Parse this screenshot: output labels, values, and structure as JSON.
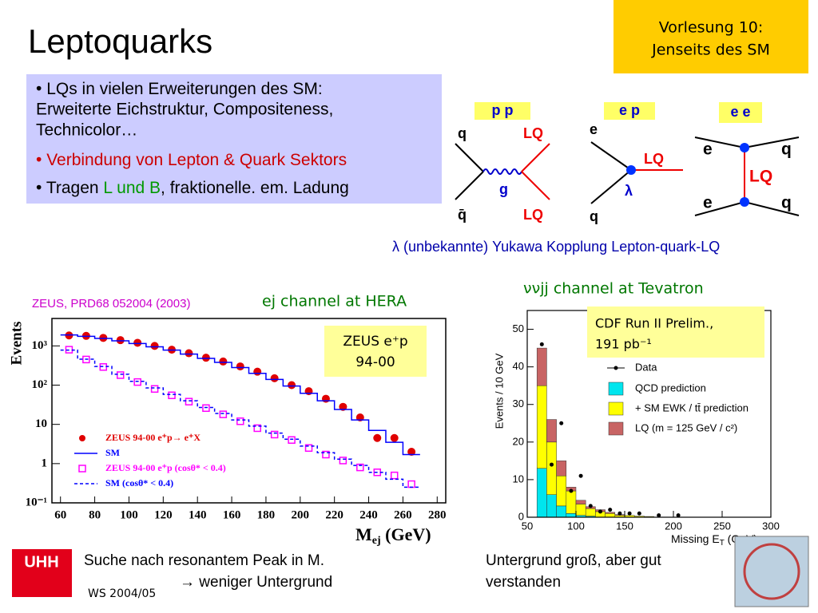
{
  "header": {
    "title": "Leptoquarks",
    "course": [
      "Vorlesung 10:",
      "Jenseits des SM"
    ]
  },
  "bullets": [
    {
      "parts": [
        "LQs in vielen Erweiterungen des SM:",
        "Erweiterte Eichstruktur, Compositeness,",
        "Technicolor…"
      ]
    },
    {
      "parts": [
        "Verbindung von Lepton & Quark Sektors"
      ]
    },
    {
      "parts": [
        "Tragen ",
        "L und B",
        ",  fraktionelle. em. Ladung"
      ]
    }
  ],
  "diagrams": [
    {
      "label": "p p",
      "particles": [
        "q",
        "q̄",
        "g",
        "LQ",
        "LQ"
      ]
    },
    {
      "label": "e p",
      "particles": [
        "e",
        "q",
        "λ",
        "LQ"
      ]
    },
    {
      "label": "e e",
      "particles": [
        "e",
        "e",
        "q",
        "q",
        "LQ"
      ]
    }
  ],
  "coupling_note": "λ (unbekannte) Yukawa Kopplung Lepton-quark-LQ",
  "hera": {
    "reference": "ZEUS, PRD68 052004 (2003)",
    "title": "ej channel at HERA",
    "box": [
      "ZEUS e⁺p",
      "94-00"
    ],
    "y_label": "Events",
    "x_label": "M",
    "x_label_sub": "ej",
    "x_label_unit": " (GeV)",
    "xlim": [
      55,
      285
    ],
    "xticks": [
      60,
      80,
      100,
      120,
      140,
      160,
      180,
      200,
      220,
      240,
      260,
      280
    ],
    "ylim": [
      0.1,
      5000
    ],
    "log": true,
    "yticks": [
      {
        "value": 0.1,
        "label": "10⁻¹"
      },
      1,
      10,
      {
        "value": 100,
        "label": "10²"
      },
      {
        "value": 1000,
        "label": "10³"
      }
    ],
    "x": [
      65,
      75,
      85,
      95,
      105,
      115,
      125,
      135,
      145,
      155,
      165,
      175,
      185,
      195,
      205,
      215,
      225,
      235,
      245,
      255,
      265
    ],
    "series": [
      {
        "name": "ZEUS 94-00 e⁺p→ e⁺X",
        "color": "#e00000",
        "style": "points",
        "values": [
          1850,
          1800,
          1600,
          1400,
          1200,
          1000,
          800,
          650,
          500,
          400,
          300,
          220,
          150,
          100,
          70,
          45,
          28,
          15,
          4.5,
          4.5,
          2
        ]
      },
      {
        "name": "SM",
        "color": "#0000ff",
        "style": "line",
        "values": [
          1900,
          1750,
          1550,
          1350,
          1150,
          950,
          780,
          620,
          480,
          380,
          280,
          200,
          140,
          95,
          62,
          40,
          24,
          13,
          7,
          3.5,
          1.7
        ]
      },
      {
        "name": "ZEUS 94-00 e⁺p (cosθ* < 0.4)",
        "color": "#ff00ff",
        "style": "squares",
        "values": [
          800,
          450,
          290,
          180,
          120,
          80,
          55,
          38,
          26,
          18,
          12,
          8,
          5.5,
          4,
          2.5,
          1.7,
          1.2,
          0.8,
          0.6,
          0.5,
          0.3
        ]
      },
      {
        "name": "SM (cosθ* < 0.4)",
        "color": "#0000ff",
        "style": "dashed",
        "values": [
          780,
          460,
          300,
          190,
          125,
          85,
          58,
          40,
          27,
          19,
          13,
          9,
          6,
          4.2,
          2.8,
          1.9,
          1.3,
          0.9,
          0.6,
          0.4,
          0.25
        ]
      }
    ]
  },
  "tevatron": {
    "title": "ννjj channel at Tevatron",
    "box": [
      "CDF Run II Prelim.,",
      "191 pb⁻¹"
    ],
    "y_label": "Events / 10 GeV",
    "x_label": "Missing E",
    "x_label_sub": "T",
    "x_label_unit": " (GeV)",
    "xlim": [
      50,
      300
    ],
    "xticks": [
      50,
      100,
      150,
      200,
      250,
      300
    ],
    "ylim": [
      0,
      55
    ],
    "yticks": [
      0,
      10,
      20,
      30,
      40,
      50
    ],
    "bins": [
      60,
      70,
      80,
      90,
      100,
      110,
      120,
      130,
      140,
      150,
      160,
      170,
      180
    ],
    "series": [
      {
        "name": "QCD prediction",
        "color": "#00e5ee",
        "values": [
          13,
          6,
          3,
          1,
          0.5,
          0.3,
          0,
          0,
          0,
          0,
          0,
          0
        ]
      },
      {
        "name": "+ SM EWK / tt̄ prediction",
        "color": "#ffff00",
        "values": [
          22,
          14,
          8,
          6,
          3,
          2,
          1.5,
          1,
          0.5,
          0.5,
          0.3,
          0.2
        ]
      },
      {
        "name": "LQ (m = 125 GeV / c²)",
        "color": "#c86464",
        "values": [
          10,
          6,
          4,
          1,
          1,
          0.5,
          0.5,
          0.3,
          0.2,
          0,
          0,
          0
        ]
      }
    ],
    "data": {
      "name": "Data",
      "x": [
        65,
        75,
        85,
        95,
        105,
        115,
        125,
        135,
        145,
        155,
        165,
        185,
        205
      ],
      "values": [
        46,
        14,
        25,
        7,
        11,
        3,
        1.5,
        2,
        1,
        1,
        1,
        0.5,
        0.5
      ]
    }
  },
  "footer": {
    "logo": "UHH",
    "left": [
      "Suche nach resonantem Peak in M.",
      "→ weniger Untergrund"
    ],
    "semester": "WS 2004/05",
    "right": [
      "Untergrund groß, aber gut",
      "verstanden"
    ]
  }
}
